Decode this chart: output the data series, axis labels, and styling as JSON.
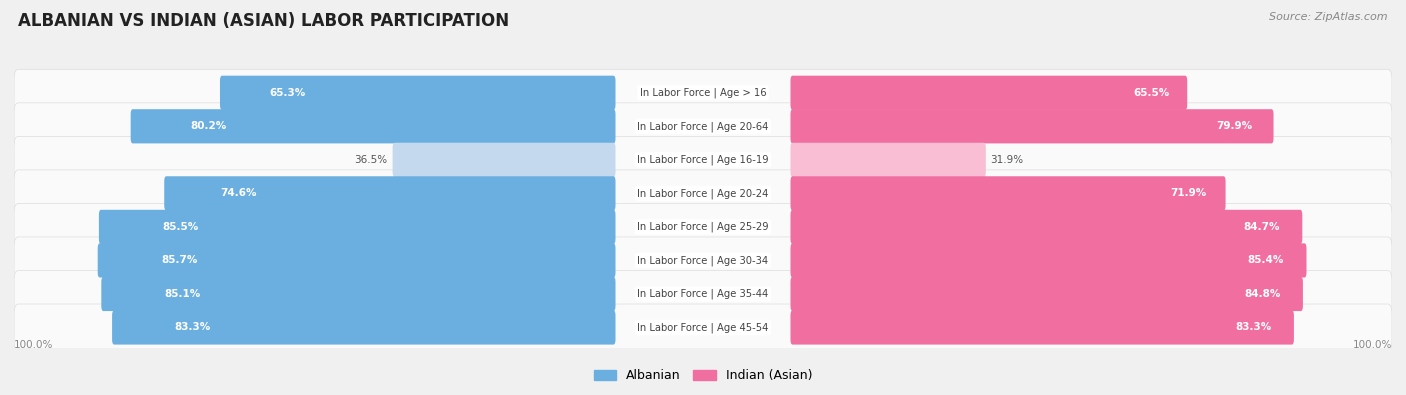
{
  "title": "ALBANIAN VS INDIAN (ASIAN) LABOR PARTICIPATION",
  "source": "Source: ZipAtlas.com",
  "categories": [
    "In Labor Force | Age > 16",
    "In Labor Force | Age 20-64",
    "In Labor Force | Age 16-19",
    "In Labor Force | Age 20-24",
    "In Labor Force | Age 25-29",
    "In Labor Force | Age 30-34",
    "In Labor Force | Age 35-44",
    "In Labor Force | Age 45-54"
  ],
  "albanian_values": [
    65.3,
    80.2,
    36.5,
    74.6,
    85.5,
    85.7,
    85.1,
    83.3
  ],
  "indian_values": [
    65.5,
    79.9,
    31.9,
    71.9,
    84.7,
    85.4,
    84.8,
    83.3
  ],
  "albanian_color_strong": "#6aafe0",
  "albanian_color_light": "#c5d9ee",
  "indian_color_strong": "#f06ea0",
  "indian_color_light": "#f9bdd4",
  "bg_color": "#f0f0f0",
  "row_bg_color": "#fafafa",
  "row_bg_alt": "#efefef",
  "center_label_color": "#444444",
  "strong_threshold": 60.0,
  "max_val": 100.0,
  "legend_albanian": "Albanian",
  "legend_indian": "Indian (Asian)",
  "bottom_label": "100.0%"
}
